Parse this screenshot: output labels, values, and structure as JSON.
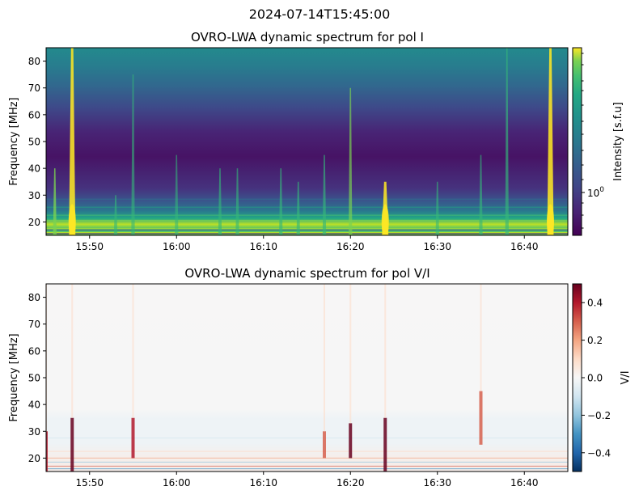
{
  "figure": {
    "suptitle": "2024-07-14T15:45:00"
  },
  "chart_data": [
    {
      "type": "heatmap",
      "title": "OVRO-LWA dynamic spectrum for pol I",
      "xlabel": "",
      "ylabel": "Frequency [MHz]",
      "xlim": [
        "15:45",
        "16:45"
      ],
      "ylim": [
        15,
        85
      ],
      "x_ticks": [
        "15:50",
        "16:00",
        "16:10",
        "16:20",
        "16:30",
        "16:40"
      ],
      "y_ticks": [
        20,
        30,
        40,
        50,
        60,
        70,
        80
      ],
      "colorbar": {
        "label": "Intensity [s.f.u]",
        "scale": "log",
        "colormap": "viridis",
        "tick_labels": [
          "10^0"
        ]
      },
      "bursts": [
        {
          "time": "15:46",
          "fmin": 15,
          "fmax": 40,
          "strength": 0.8
        },
        {
          "time": "15:48",
          "fmin": 15,
          "fmax": 85,
          "strength": 0.95
        },
        {
          "time": "15:53",
          "fmin": 15,
          "fmax": 30,
          "strength": 0.5
        },
        {
          "time": "15:55",
          "fmin": 15,
          "fmax": 75,
          "strength": 0.45
        },
        {
          "time": "16:00",
          "fmin": 15,
          "fmax": 45,
          "strength": 0.4
        },
        {
          "time": "16:05",
          "fmin": 15,
          "fmax": 40,
          "strength": 0.5
        },
        {
          "time": "16:07",
          "fmin": 15,
          "fmax": 40,
          "strength": 0.5
        },
        {
          "time": "16:12",
          "fmin": 15,
          "fmax": 40,
          "strength": 0.55
        },
        {
          "time": "16:14",
          "fmin": 15,
          "fmax": 35,
          "strength": 0.55
        },
        {
          "time": "16:17",
          "fmin": 15,
          "fmax": 45,
          "strength": 0.55
        },
        {
          "time": "16:20",
          "fmin": 15,
          "fmax": 70,
          "strength": 0.6
        },
        {
          "time": "16:24",
          "fmin": 15,
          "fmax": 35,
          "strength": 0.95
        },
        {
          "time": "16:30",
          "fmin": 15,
          "fmax": 35,
          "strength": 0.45
        },
        {
          "time": "16:35",
          "fmin": 15,
          "fmax": 45,
          "strength": 0.5
        },
        {
          "time": "16:38",
          "fmin": 15,
          "fmax": 85,
          "strength": 0.55
        },
        {
          "time": "16:43",
          "fmin": 15,
          "fmax": 85,
          "strength": 0.95
        }
      ]
    },
    {
      "type": "heatmap",
      "title": "OVRO-LWA dynamic spectrum for pol V/I",
      "xlabel": "",
      "ylabel": "Frequency [MHz]",
      "xlim": [
        "15:45",
        "16:45"
      ],
      "ylim": [
        15,
        85
      ],
      "x_ticks": [
        "15:50",
        "16:00",
        "16:10",
        "16:20",
        "16:30",
        "16:40"
      ],
      "y_ticks": [
        20,
        30,
        40,
        50,
        60,
        70,
        80
      ],
      "colorbar": {
        "label": "V/I",
        "scale": "linear",
        "colormap": "RdBu_r",
        "range": [
          -0.5,
          0.5
        ],
        "ticks": [
          0.4,
          0.2,
          0.0,
          -0.2,
          -0.4
        ],
        "tick_labels": [
          "0.4",
          "0.2",
          "0.0",
          "−0.2",
          "−0.4"
        ]
      },
      "features": [
        {
          "time": "15:45",
          "fmin": 15,
          "fmax": 30,
          "value": 0.35
        },
        {
          "time": "15:48",
          "fmin": 15,
          "fmax": 35,
          "value": 0.5
        },
        {
          "time": "15:55",
          "fmin": 20,
          "fmax": 35,
          "value": 0.4
        },
        {
          "time": "16:17",
          "fmin": 20,
          "fmax": 30,
          "value": 0.3
        },
        {
          "time": "16:20",
          "fmin": 20,
          "fmax": 33,
          "value": 0.45
        },
        {
          "time": "16:24",
          "fmin": 15,
          "fmax": 35,
          "value": 0.5
        },
        {
          "time": "16:35",
          "fmin": 25,
          "fmax": 45,
          "value": 0.3
        }
      ]
    }
  ]
}
